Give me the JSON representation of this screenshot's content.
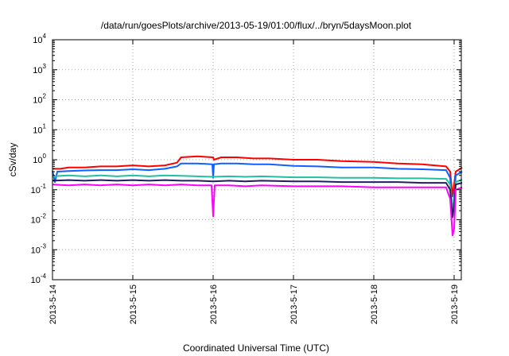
{
  "chart_data": {
    "type": "line",
    "title": "/data/run/goesPlots/archive/2013-05-19/01:00/flux/../bryn/5daysMoon.plot",
    "xlabel": "Coordinated Universal Time (UTC)",
    "ylabel": "cSv/day",
    "yscale": "log",
    "grid": true,
    "ylim": [
      0.0001,
      10000
    ],
    "xlim": [
      0,
      5.1
    ],
    "x_ticks": [
      {
        "x": 0,
        "label": "2013-5-14"
      },
      {
        "x": 1,
        "label": "2013-5-15"
      },
      {
        "x": 2,
        "label": "2013-5-16"
      },
      {
        "x": 3,
        "label": "2013-5-17"
      },
      {
        "x": 4,
        "label": "2013-5-18"
      },
      {
        "x": 5,
        "label": "2013-5-19"
      }
    ],
    "y_ticks": [
      {
        "exp": 4,
        "base": "10",
        "sup": "4"
      },
      {
        "exp": 3,
        "base": "10",
        "sup": "3"
      },
      {
        "exp": 2,
        "base": "10",
        "sup": "2"
      },
      {
        "exp": 1,
        "base": "10",
        "sup": "1"
      },
      {
        "exp": 0,
        "base": "10",
        "sup": "0"
      },
      {
        "exp": -1,
        "base": "10",
        "sup": "-1"
      },
      {
        "exp": -2,
        "base": "10",
        "sup": "-2"
      },
      {
        "exp": -3,
        "base": "10",
        "sup": "-3"
      },
      {
        "exp": -4,
        "base": "10",
        "sup": "-4"
      }
    ],
    "series": [
      {
        "color": "#ff0000",
        "points": [
          [
            0,
            0.5
          ],
          [
            0.1,
            0.5
          ],
          [
            0.2,
            0.55
          ],
          [
            0.4,
            0.55
          ],
          [
            0.6,
            0.6
          ],
          [
            0.8,
            0.6
          ],
          [
            1.0,
            0.65
          ],
          [
            1.2,
            0.6
          ],
          [
            1.4,
            0.65
          ],
          [
            1.55,
            0.8
          ],
          [
            1.6,
            1.2
          ],
          [
            1.8,
            1.3
          ],
          [
            2.0,
            1.2
          ],
          [
            2.01,
            1.0
          ],
          [
            2.1,
            1.2
          ],
          [
            2.3,
            1.2
          ],
          [
            2.5,
            1.1
          ],
          [
            2.7,
            1.1
          ],
          [
            3.0,
            1.0
          ],
          [
            3.3,
            1.0
          ],
          [
            3.6,
            0.9
          ],
          [
            4.0,
            0.85
          ],
          [
            4.3,
            0.75
          ],
          [
            4.6,
            0.7
          ],
          [
            4.9,
            0.6
          ],
          [
            4.95,
            0.4
          ],
          [
            4.98,
            0.06
          ],
          [
            5.0,
            0.15
          ],
          [
            5.02,
            0.4
          ],
          [
            5.1,
            0.55
          ]
        ]
      },
      {
        "color": "#1060ff",
        "points": [
          [
            0,
            0.42
          ],
          [
            0.03,
            0.18
          ],
          [
            0.06,
            0.4
          ],
          [
            0.2,
            0.42
          ],
          [
            0.4,
            0.44
          ],
          [
            0.6,
            0.45
          ],
          [
            0.8,
            0.45
          ],
          [
            1.0,
            0.48
          ],
          [
            1.2,
            0.45
          ],
          [
            1.4,
            0.5
          ],
          [
            1.55,
            0.6
          ],
          [
            1.6,
            0.75
          ],
          [
            1.8,
            0.75
          ],
          [
            1.99,
            0.7
          ],
          [
            2.0,
            0.25
          ],
          [
            2.01,
            0.7
          ],
          [
            2.1,
            0.75
          ],
          [
            2.3,
            0.75
          ],
          [
            2.5,
            0.7
          ],
          [
            2.7,
            0.7
          ],
          [
            3.0,
            0.62
          ],
          [
            3.3,
            0.6
          ],
          [
            3.6,
            0.55
          ],
          [
            4.0,
            0.55
          ],
          [
            4.3,
            0.5
          ],
          [
            4.6,
            0.48
          ],
          [
            4.9,
            0.45
          ],
          [
            4.95,
            0.25
          ],
          [
            4.98,
            0.015
          ],
          [
            5.0,
            0.05
          ],
          [
            5.02,
            0.3
          ],
          [
            5.1,
            0.4
          ]
        ]
      },
      {
        "color": "#20c0a0",
        "points": [
          [
            0,
            0.28
          ],
          [
            0.2,
            0.3
          ],
          [
            0.4,
            0.28
          ],
          [
            0.6,
            0.3
          ],
          [
            0.8,
            0.28
          ],
          [
            1.0,
            0.3
          ],
          [
            1.2,
            0.28
          ],
          [
            1.4,
            0.3
          ],
          [
            1.6,
            0.29
          ],
          [
            1.8,
            0.28
          ],
          [
            2.0,
            0.27
          ],
          [
            2.2,
            0.28
          ],
          [
            2.4,
            0.27
          ],
          [
            2.6,
            0.28
          ],
          [
            3.0,
            0.26
          ],
          [
            3.3,
            0.26
          ],
          [
            3.6,
            0.25
          ],
          [
            4.0,
            0.25
          ],
          [
            4.3,
            0.24
          ],
          [
            4.6,
            0.24
          ],
          [
            4.9,
            0.23
          ],
          [
            4.95,
            0.15
          ],
          [
            4.98,
            0.02
          ],
          [
            5.0,
            0.04
          ],
          [
            5.02,
            0.18
          ],
          [
            5.1,
            0.22
          ]
        ]
      },
      {
        "color": "#202060",
        "points": [
          [
            0,
            0.2
          ],
          [
            0.2,
            0.21
          ],
          [
            0.4,
            0.2
          ],
          [
            0.6,
            0.21
          ],
          [
            0.8,
            0.2
          ],
          [
            1.0,
            0.21
          ],
          [
            1.2,
            0.2
          ],
          [
            1.4,
            0.21
          ],
          [
            1.6,
            0.2
          ],
          [
            1.8,
            0.2
          ],
          [
            2.0,
            0.19
          ],
          [
            2.2,
            0.2
          ],
          [
            2.4,
            0.19
          ],
          [
            2.6,
            0.2
          ],
          [
            3.0,
            0.19
          ],
          [
            3.3,
            0.19
          ],
          [
            3.6,
            0.18
          ],
          [
            4.0,
            0.18
          ],
          [
            4.3,
            0.18
          ],
          [
            4.6,
            0.17
          ],
          [
            4.9,
            0.17
          ],
          [
            4.95,
            0.1
          ],
          [
            4.98,
            0.012
          ],
          [
            5.0,
            0.03
          ],
          [
            5.02,
            0.15
          ],
          [
            5.1,
            0.17
          ]
        ]
      },
      {
        "color": "#ff00ff",
        "points": [
          [
            0,
            0.15
          ],
          [
            0.2,
            0.14
          ],
          [
            0.4,
            0.15
          ],
          [
            0.6,
            0.14
          ],
          [
            0.8,
            0.15
          ],
          [
            1.0,
            0.14
          ],
          [
            1.2,
            0.15
          ],
          [
            1.4,
            0.14
          ],
          [
            1.6,
            0.15
          ],
          [
            1.8,
            0.14
          ],
          [
            1.98,
            0.14
          ],
          [
            2.0,
            0.013
          ],
          [
            2.02,
            0.14
          ],
          [
            2.2,
            0.14
          ],
          [
            2.4,
            0.13
          ],
          [
            2.6,
            0.14
          ],
          [
            3.0,
            0.13
          ],
          [
            3.3,
            0.13
          ],
          [
            3.6,
            0.13
          ],
          [
            4.0,
            0.12
          ],
          [
            4.3,
            0.12
          ],
          [
            4.6,
            0.12
          ],
          [
            4.9,
            0.12
          ],
          [
            4.95,
            0.05
          ],
          [
            4.98,
            0.003
          ],
          [
            5.0,
            0.005
          ],
          [
            5.02,
            0.1
          ],
          [
            5.1,
            0.12
          ]
        ]
      }
    ]
  }
}
